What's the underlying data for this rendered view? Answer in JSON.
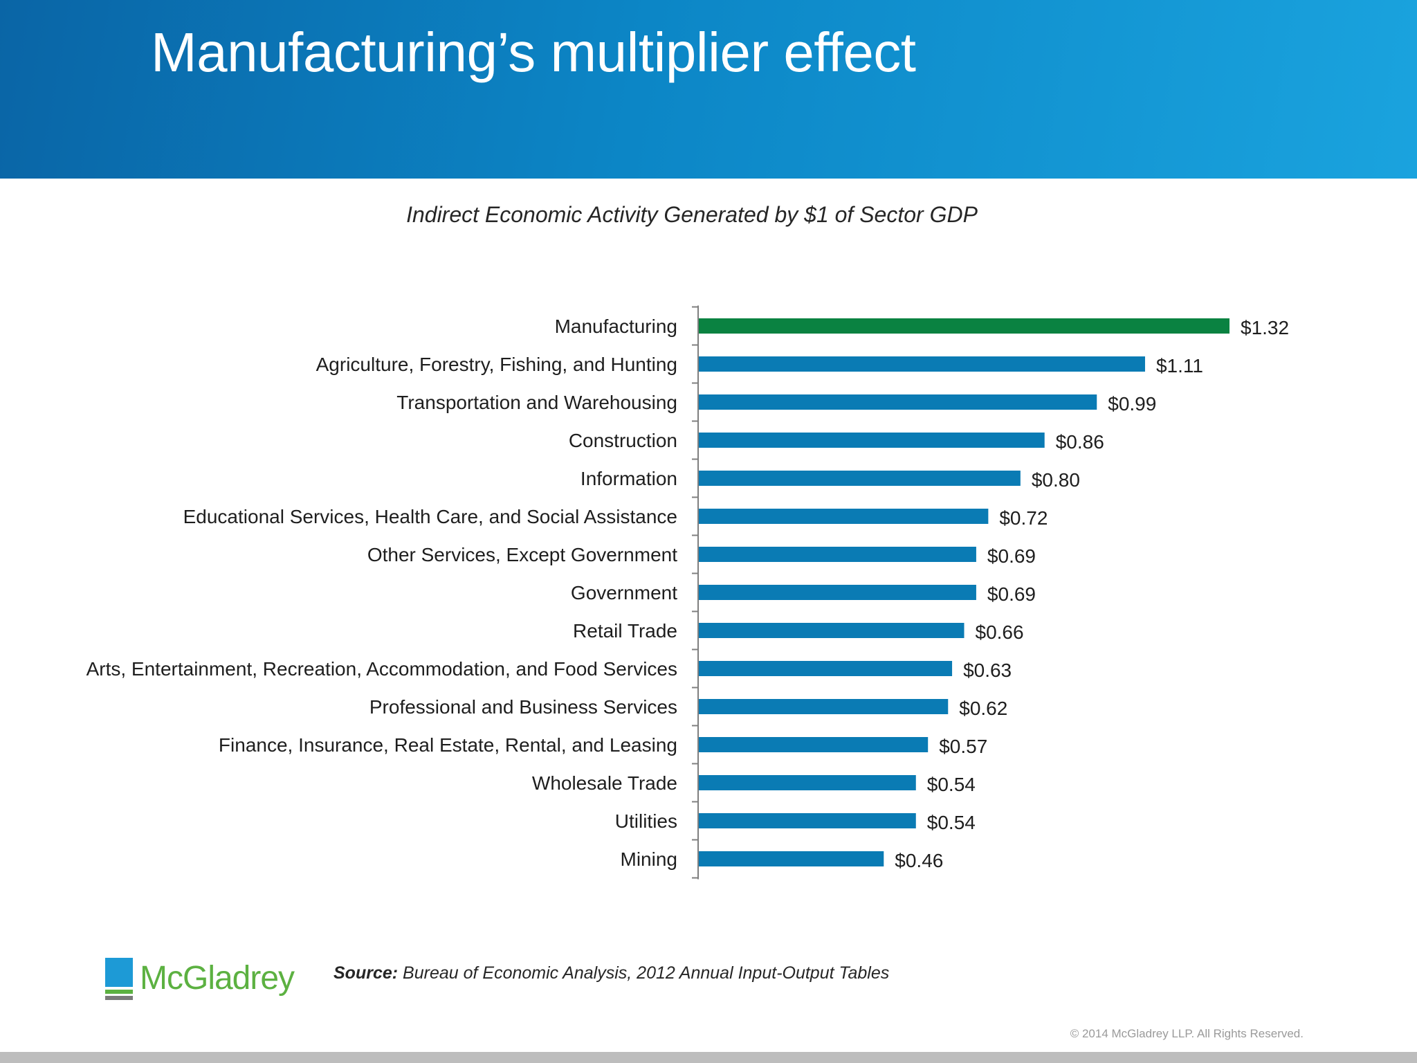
{
  "slide": {
    "title": "Manufacturing’s multiplier effect",
    "source_label": "Source:",
    "source_text": " Bureau of Economic Analysis, 2012 Annual Input-Output Tables",
    "copyright": "© 2014 McGladrey LLP. All Rights Reserved.",
    "logo_text": "McGladrey"
  },
  "colors": {
    "header_start": "#0a65a6",
    "header_end": "#1aa3de",
    "highlight_bar": "#0a8241",
    "bar": "#0a7bb4",
    "logo_green": "#5cb141"
  },
  "chart_data": {
    "type": "bar",
    "orientation": "horizontal",
    "title": "Indirect Economic Activity Generated by $1 of Sector GDP",
    "xlabel": "",
    "ylabel": "",
    "xlim": [
      0,
      1.32
    ],
    "grid": false,
    "legend": "none",
    "categories": [
      "Manufacturing",
      "Agriculture, Forestry, Fishing, and Hunting",
      "Transportation and Warehousing",
      "Construction",
      "Information",
      "Educational Services, Health Care, and Social Assistance",
      "Other Services, Except Government",
      "Government",
      "Retail Trade",
      "Arts, Entertainment, Recreation, Accommodation, and Food Services",
      "Professional and Business Services",
      "Finance, Insurance, Real Estate, Rental, and Leasing",
      "Wholesale Trade",
      "Utilities",
      "Mining"
    ],
    "values": [
      1.32,
      1.11,
      0.99,
      0.86,
      0.8,
      0.72,
      0.69,
      0.69,
      0.66,
      0.63,
      0.62,
      0.57,
      0.54,
      0.54,
      0.46
    ],
    "value_labels": [
      "$1.32",
      "$1.11",
      "$0.99",
      "$0.86",
      "$0.80",
      "$0.72",
      "$0.69",
      "$0.69",
      "$0.66",
      "$0.63",
      "$0.62",
      "$0.57",
      "$0.54",
      "$0.54",
      "$0.46"
    ],
    "highlight_index": 0
  }
}
